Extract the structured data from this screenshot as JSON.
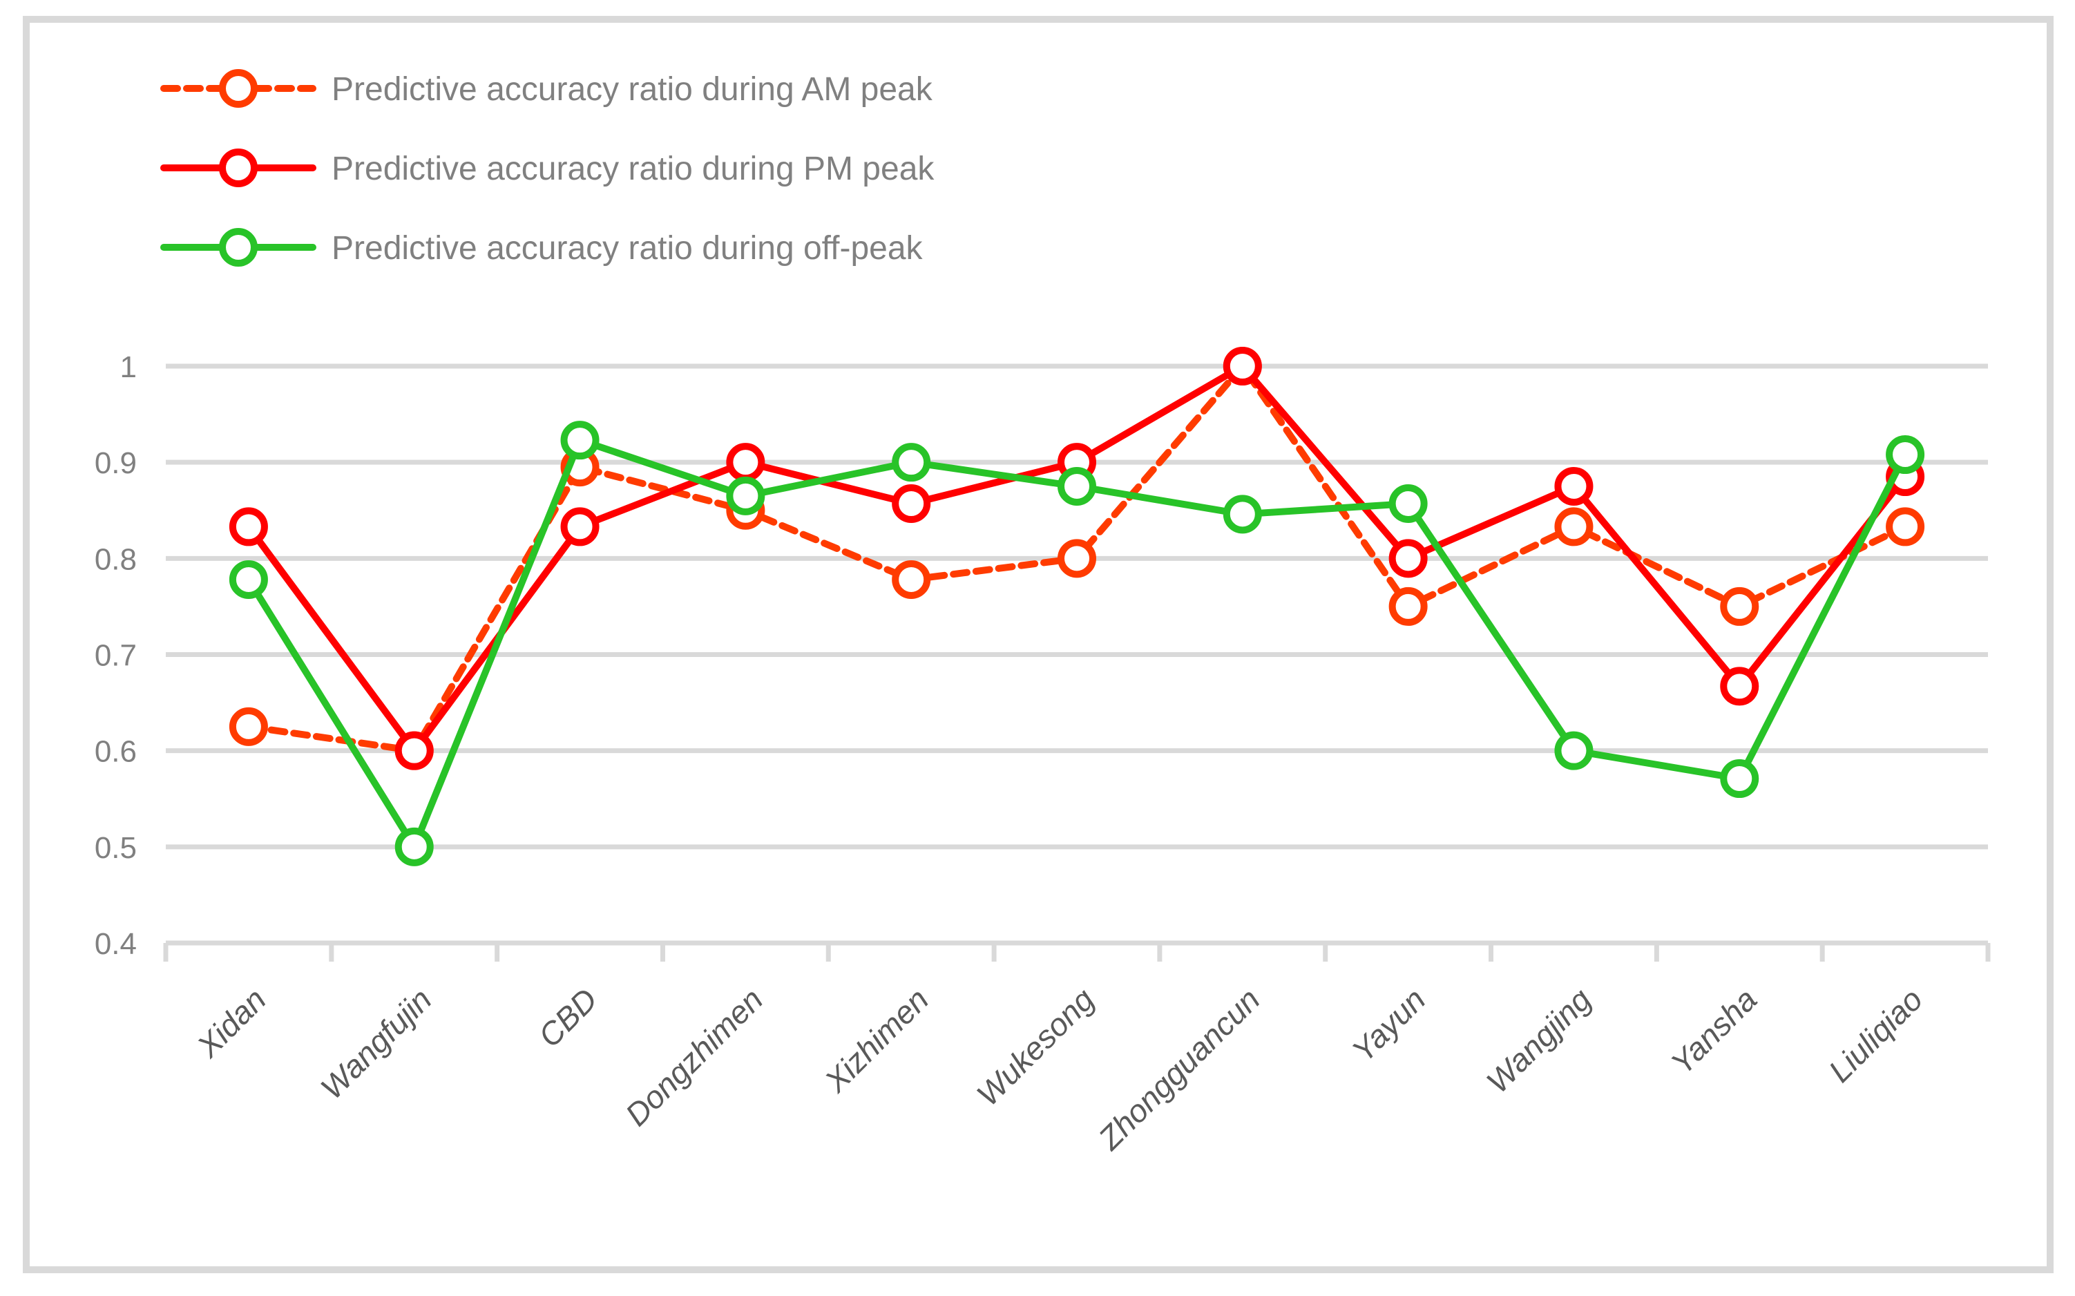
{
  "figure": {
    "background_color": "#FFFFFF",
    "border_color": "#D9D9D9"
  },
  "legend": {
    "text_color": "#808080"
  },
  "axes": {
    "y_label_color": "#808080",
    "x_label_color": "#595959",
    "grid_color": "#D9D9D9"
  },
  "chart_data": {
    "type": "line",
    "title": "",
    "xlabel": "",
    "ylabel": "",
    "grid": true,
    "legend_position": "top-left",
    "ylim": [
      0.4,
      1.0
    ],
    "yticks": [
      1,
      0.9,
      0.8,
      0.7,
      0.6,
      0.5,
      0.4
    ],
    "ytick_labels": [
      "1",
      "0.9",
      "0.8",
      "0.7",
      "0.6",
      "0.5",
      "0.4"
    ],
    "categories": [
      "Xidan",
      "Wangfujin",
      "CBD",
      "Dongzhimen",
      "Xizhimen",
      "Wukesong",
      "Zhongguancun",
      "Yayun",
      "Wangjing",
      "Yansha",
      "Liuliqiao"
    ],
    "series": [
      {
        "name": "Predictive accuracy ratio during AM peak",
        "color": "#FF3B00",
        "dash": true,
        "values": [
          0.625,
          0.6,
          0.895,
          0.85,
          0.778,
          0.8,
          1.0,
          0.75,
          0.833,
          0.75,
          0.833
        ]
      },
      {
        "name": "Predictive accuracy ratio during PM peak",
        "color": "#FF0000",
        "dash": false,
        "values": [
          0.833,
          0.6,
          0.833,
          0.9,
          0.857,
          0.9,
          1.0,
          0.8,
          0.875,
          0.667,
          0.885
        ]
      },
      {
        "name": "Predictive accuracy ratio during off-peak",
        "color": "#28C328",
        "dash": false,
        "values": [
          0.778,
          0.5,
          0.923,
          0.865,
          0.9,
          0.875,
          0.846,
          0.857,
          0.6,
          0.571,
          0.908
        ]
      }
    ]
  }
}
